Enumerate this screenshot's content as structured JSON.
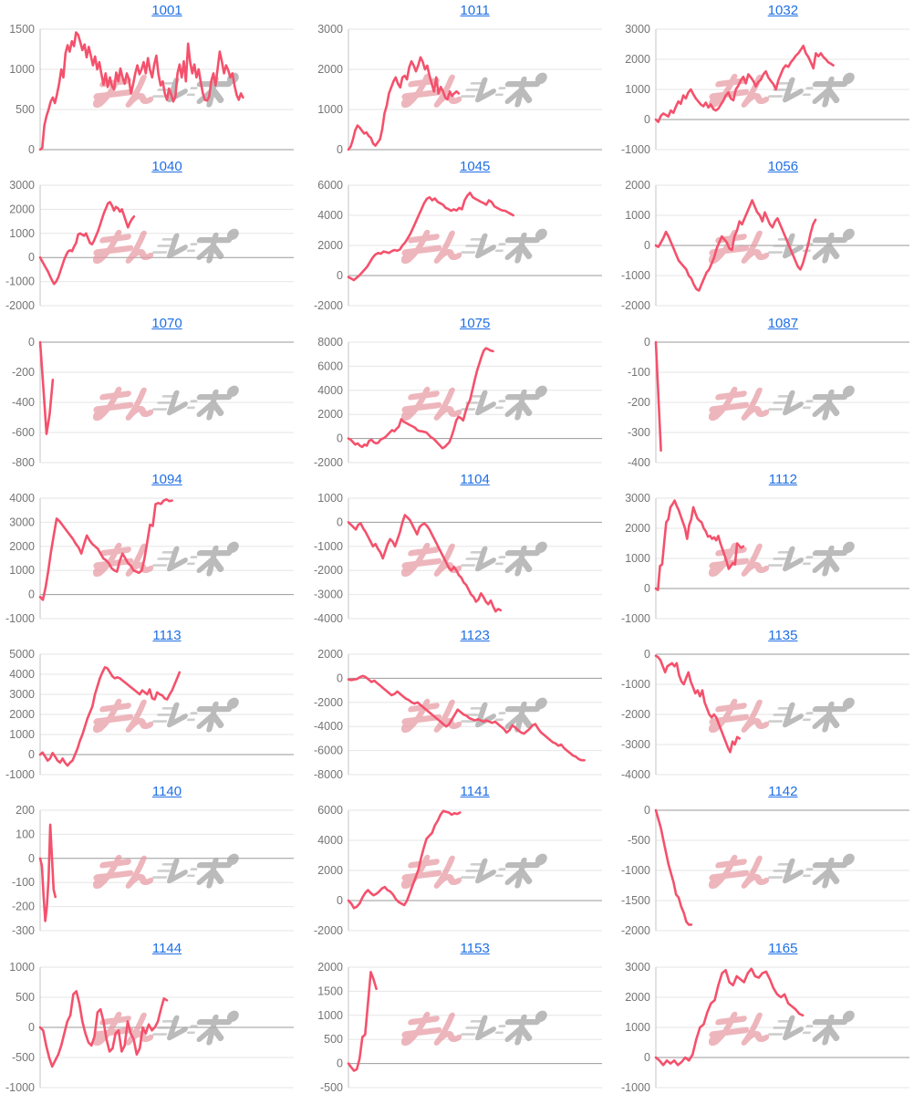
{
  "page": {
    "background": "#ffffff"
  },
  "theme": {
    "link_color": "#1f6fe5",
    "series_color": "#f4516c",
    "tick_label_color": "#757575",
    "gridline_color": "#e6e6e6",
    "baseline_color": "#9a9a9a",
    "axis_line_color": "#c4c4c4",
    "watermark_pink": "#e79aa3",
    "watermark_gray": "#a9a9a9"
  },
  "watermark": {
    "icon": "minrepo-logo",
    "pink_part": "みん",
    "gray_part": "レポ"
  },
  "chart_data": [
    {
      "type": "line",
      "title": "1001",
      "ylim": [
        0,
        1500
      ],
      "yticks": [
        0,
        500,
        1000,
        1500
      ],
      "x_end_fraction": 0.8,
      "values": [
        0,
        20,
        300,
        420,
        500,
        600,
        650,
        580,
        690,
        820,
        1000,
        900,
        1200,
        1300,
        1220,
        1350,
        1290,
        1460,
        1430,
        1340,
        1240,
        1310,
        1150,
        1280,
        1170,
        1050,
        1160,
        1000,
        1090,
        940,
        810,
        950,
        780,
        900,
        790,
        750,
        960,
        850,
        1010,
        900,
        820,
        950,
        880,
        700,
        810,
        950,
        1050,
        940,
        1000,
        1090,
        950,
        1140,
        990,
        900,
        1060,
        1170,
        940,
        800,
        850,
        700,
        620,
        760,
        690,
        600,
        660,
        950,
        1060,
        900,
        1100,
        850,
        1320,
        1090,
        950,
        1060,
        900,
        1000,
        840,
        700,
        620,
        610,
        660,
        860,
        950,
        800,
        1010,
        1220,
        1100,
        950,
        1050,
        990,
        900,
        950,
        800,
        680,
        620,
        700,
        650
      ]
    },
    {
      "type": "line",
      "title": "1011",
      "ylim": [
        0,
        3000
      ],
      "yticks": [
        0,
        1000,
        2000,
        3000
      ],
      "x_end_fraction": 0.435,
      "values": [
        0,
        80,
        250,
        480,
        600,
        550,
        470,
        400,
        430,
        340,
        290,
        150,
        100,
        180,
        260,
        500,
        900,
        1100,
        1400,
        1550,
        1700,
        1800,
        1640,
        1550,
        1800,
        1840,
        1750,
        2050,
        2200,
        2090,
        1950,
        2100,
        2300,
        2190,
        2000,
        2090,
        1850,
        1640,
        1450,
        1800,
        1400,
        1560,
        1450,
        1300,
        1250,
        1450,
        1340,
        1400,
        1450,
        1400
      ]
    },
    {
      "type": "line",
      "title": "1032",
      "ylim": [
        -1000,
        3000
      ],
      "yticks": [
        -1000,
        0,
        1000,
        2000,
        3000
      ],
      "x_end_fraction": 0.7,
      "values": [
        0,
        -80,
        120,
        200,
        150,
        100,
        300,
        220,
        420,
        600,
        520,
        800,
        700,
        900,
        1000,
        840,
        700,
        600,
        500,
        440,
        560,
        400,
        500,
        350,
        300,
        360,
        500,
        620,
        800,
        900,
        700,
        640,
        1000,
        1120,
        1300,
        1420,
        1200,
        1500,
        1400,
        1280,
        1100,
        1250,
        1320,
        1500,
        1600,
        1400,
        1280,
        1180,
        1000,
        1300,
        1500,
        1700,
        1800,
        1750,
        1900,
        2000,
        2120,
        2200,
        2320,
        2450,
        2200,
        2080,
        1900,
        1700,
        2200,
        2100,
        2200,
        2080,
        2000,
        1900,
        1850,
        1800
      ]
    },
    {
      "type": "line",
      "title": "1040",
      "ylim": [
        -2000,
        3000
      ],
      "yticks": [
        -2000,
        -1000,
        0,
        1000,
        2000,
        3000
      ],
      "x_end_fraction": 0.37,
      "values": [
        0,
        -150,
        -300,
        -450,
        -600,
        -780,
        -950,
        -1100,
        -1000,
        -840,
        -600,
        -350,
        -100,
        100,
        250,
        300,
        260,
        450,
        600,
        950,
        1000,
        950,
        900,
        1000,
        800,
        600,
        550,
        700,
        900,
        1100,
        1350,
        1600,
        1850,
        2050,
        2250,
        2300,
        2150,
        1950,
        2100,
        2040,
        1900,
        2000,
        1750,
        1500,
        1250,
        1450,
        1600,
        1700
      ]
    },
    {
      "type": "line",
      "title": "1045",
      "ylim": [
        -2000,
        6000
      ],
      "yticks": [
        -2000,
        0,
        2000,
        4000,
        6000
      ],
      "x_end_fraction": 0.65,
      "values": [
        -100,
        -200,
        -300,
        -150,
        0,
        200,
        400,
        600,
        900,
        1200,
        1400,
        1500,
        1450,
        1600,
        1550,
        1500,
        1620,
        1700,
        1650,
        1720,
        2000,
        2200,
        2500,
        2800,
        3200,
        3600,
        4000,
        4400,
        4800,
        5100,
        5200,
        5000,
        5120,
        4900,
        4800,
        4700,
        4500,
        4420,
        4300,
        4400,
        4320,
        4500,
        4400,
        5000,
        5300,
        5500,
        5200,
        5100,
        5000,
        4900,
        4820,
        4700,
        5000,
        4880,
        4600,
        4500,
        4400,
        4320,
        4300,
        4200,
        4100,
        4000
      ]
    },
    {
      "type": "line",
      "title": "1056",
      "ylim": [
        -2000,
        2000
      ],
      "yticks": [
        -2000,
        -1000,
        0,
        1000,
        2000
      ],
      "x_end_fraction": 0.63,
      "values": [
        0,
        -50,
        100,
        250,
        450,
        300,
        100,
        -100,
        -300,
        -500,
        -600,
        -700,
        -800,
        -1000,
        -1100,
        -1300,
        -1450,
        -1500,
        -1300,
        -1100,
        -900,
        -800,
        -600,
        -400,
        -100,
        100,
        300,
        200,
        100,
        -100,
        -150,
        300,
        500,
        800,
        700,
        900,
        1100,
        1300,
        1500,
        1300,
        1100,
        1000,
        800,
        1100,
        900,
        700,
        600,
        800,
        900,
        700,
        500,
        300,
        100,
        -100,
        -300,
        -500,
        -700,
        -800,
        -600,
        -300,
        0,
        400,
        700,
        850
      ]
    },
    {
      "type": "line",
      "title": "1070",
      "ylim": [
        -800,
        0
      ],
      "yticks": [
        -800,
        -600,
        -400,
        -200,
        0
      ],
      "x_end_fraction": 0.05,
      "values": [
        0,
        -300,
        -610,
        -480,
        -250
      ]
    },
    {
      "type": "line",
      "title": "1075",
      "ylim": [
        -2000,
        8000
      ],
      "yticks": [
        -2000,
        0,
        2000,
        4000,
        6000,
        8000
      ],
      "x_end_fraction": 0.57,
      "values": [
        0,
        -100,
        -300,
        -500,
        -400,
        -600,
        -700,
        -500,
        -600,
        -200,
        -100,
        -300,
        -400,
        -350,
        -100,
        0,
        100,
        300,
        500,
        700,
        600,
        800,
        1000,
        1600,
        1400,
        1300,
        1200,
        1100,
        1000,
        900,
        700,
        620,
        600,
        550,
        500,
        300,
        100,
        0,
        -200,
        -400,
        -600,
        -800,
        -700,
        -500,
        -300,
        200,
        800,
        1500,
        1800,
        1700,
        1500,
        2200,
        2800,
        3200,
        4000,
        4800,
        5600,
        6200,
        6800,
        7300,
        7500,
        7400,
        7300,
        7250
      ]
    },
    {
      "type": "line",
      "title": "1087",
      "ylim": [
        -400,
        0
      ],
      "yticks": [
        -400,
        -300,
        -200,
        -100,
        0
      ],
      "x_end_fraction": 0.02,
      "values": [
        0,
        -360
      ]
    },
    {
      "type": "line",
      "title": "1094",
      "ylim": [
        -1000,
        4000
      ],
      "yticks": [
        -1000,
        0,
        1000,
        2000,
        3000,
        4000
      ],
      "x_end_fraction": 0.52,
      "values": [
        -100,
        -220,
        300,
        1000,
        1800,
        2500,
        3150,
        3050,
        2900,
        2750,
        2600,
        2450,
        2300,
        2100,
        1950,
        1700,
        2100,
        2450,
        2250,
        2100,
        2000,
        1900,
        1700,
        1500,
        1420,
        1300,
        1100,
        1000,
        950,
        1400,
        1700,
        1500,
        1300,
        1200,
        1000,
        950,
        900,
        1000,
        1500,
        2200,
        2900,
        2850,
        3750,
        3800,
        3760,
        3900,
        3950,
        3880,
        3900
      ]
    },
    {
      "type": "line",
      "title": "1104",
      "ylim": [
        -4000,
        1000
      ],
      "yticks": [
        -4000,
        -3000,
        -2000,
        -1000,
        0,
        1000
      ],
      "x_end_fraction": 0.6,
      "values": [
        0,
        -100,
        -200,
        -300,
        -100,
        -50,
        -250,
        -400,
        -600,
        -800,
        -1000,
        -900,
        -1100,
        -1250,
        -1500,
        -1200,
        -900,
        -700,
        -800,
        -1000,
        -700,
        -400,
        0,
        300,
        200,
        100,
        -100,
        -300,
        -500,
        -200,
        -100,
        -50,
        -150,
        -300,
        -500,
        -700,
        -900,
        -1100,
        -1300,
        -1500,
        -1700,
        -1900,
        -2000,
        -1850,
        -2000,
        -2200,
        -2300,
        -2500,
        -2600,
        -2800,
        -3000,
        -3100,
        -3300,
        -3200,
        -2950,
        -3100,
        -3300,
        -3400,
        -3250,
        -3500,
        -3700,
        -3600,
        -3650
      ]
    },
    {
      "type": "line",
      "title": "1112",
      "ylim": [
        -1000,
        3000
      ],
      "yticks": [
        -1000,
        0,
        1000,
        2000,
        3000
      ],
      "x_end_fraction": 0.345,
      "values": [
        0,
        -50,
        750,
        800,
        1500,
        2200,
        2300,
        2700,
        2800,
        2920,
        2750,
        2600,
        2400,
        2200,
        2000,
        1650,
        2100,
        2300,
        2700,
        2500,
        2320,
        2250,
        2200,
        2000,
        1900,
        1720,
        1750,
        1650,
        1700,
        1600,
        1750,
        1500,
        1300,
        1100,
        900,
        650,
        750,
        850,
        800,
        1500,
        1420,
        1350,
        1400
      ]
    },
    {
      "type": "line",
      "title": "1113",
      "ylim": [
        -1000,
        5000
      ],
      "yticks": [
        -1000,
        0,
        1000,
        2000,
        3000,
        4000,
        5000
      ],
      "x_end_fraction": 0.55,
      "values": [
        0,
        100,
        -100,
        -300,
        -200,
        80,
        -100,
        -300,
        -400,
        -200,
        -400,
        -550,
        -400,
        -300,
        0,
        300,
        700,
        1000,
        1400,
        1800,
        2100,
        2400,
        3000,
        3400,
        3800,
        4100,
        4350,
        4300,
        4100,
        3900,
        3800,
        3850,
        3800,
        3700,
        3600,
        3500,
        3400,
        3300,
        3200,
        3100,
        3000,
        3200,
        3100,
        3000,
        3250,
        2800,
        2750,
        3100,
        3000,
        2950,
        2800,
        2750,
        3000,
        3200,
        3500,
        3800,
        4100
      ]
    },
    {
      "type": "line",
      "title": "1123",
      "ylim": [
        -8000,
        2000
      ],
      "yticks": [
        -8000,
        -6000,
        -4000,
        -2000,
        0,
        2000
      ],
      "x_end_fraction": 0.93,
      "values": [
        -100,
        -150,
        -100,
        -50,
        100,
        200,
        100,
        -100,
        -300,
        -200,
        -400,
        -600,
        -800,
        -1000,
        -1200,
        -1400,
        -1300,
        -1100,
        -1300,
        -1500,
        -1700,
        -1800,
        -2000,
        -2100,
        -2000,
        -2200,
        -2400,
        -2600,
        -2800,
        -3000,
        -3200,
        -3400,
        -3600,
        -3800,
        -4000,
        -3800,
        -3400,
        -3000,
        -2600,
        -2800,
        -3000,
        -3100,
        -3300,
        -3400,
        -3500,
        -3400,
        -3500,
        -3600,
        -3500,
        -3600,
        -3700,
        -3600,
        -3800,
        -4000,
        -4200,
        -4500,
        -4300,
        -3900,
        -4100,
        -4300,
        -4500,
        -4600,
        -4400,
        -4200,
        -3900,
        -3800,
        -4200,
        -4500,
        -4700,
        -4900,
        -5100,
        -5300,
        -5400,
        -5600,
        -5500,
        -5800,
        -6000,
        -6200,
        -6400,
        -6500,
        -6700,
        -6800,
        -6800
      ]
    },
    {
      "type": "line",
      "title": "1135",
      "ylim": [
        -4000,
        0
      ],
      "yticks": [
        -4000,
        -3000,
        -2000,
        -1000,
        0
      ],
      "x_end_fraction": 0.33,
      "values": [
        -50,
        -100,
        -200,
        -400,
        -600,
        -400,
        -350,
        -300,
        -400,
        -300,
        -700,
        -900,
        -1000,
        -800,
        -600,
        -900,
        -1100,
        -1300,
        -1200,
        -1400,
        -1200,
        -1600,
        -1800,
        -2000,
        -2100,
        -2000,
        -2100,
        -2300,
        -2500,
        -2700,
        -2900,
        -3100,
        -3250,
        -2900,
        -3000,
        -2750,
        -2800
      ]
    },
    {
      "type": "line",
      "title": "1140",
      "ylim": [
        -300,
        200
      ],
      "yticks": [
        -300,
        -200,
        -100,
        0,
        100,
        200
      ],
      "x_end_fraction": 0.06,
      "values": [
        0,
        -30,
        -150,
        -260,
        -200,
        -80,
        140,
        0,
        -130,
        -160
      ]
    },
    {
      "type": "line",
      "title": "1141",
      "ylim": [
        -2000,
        6000
      ],
      "yticks": [
        -2000,
        0,
        2000,
        4000,
        6000
      ],
      "x_end_fraction": 0.44,
      "values": [
        0,
        -200,
        -500,
        -400,
        -200,
        200,
        500,
        700,
        500,
        350,
        450,
        600,
        800,
        900,
        700,
        600,
        400,
        100,
        -100,
        -200,
        -300,
        0,
        500,
        1000,
        1500,
        2000,
        2800,
        3500,
        4100,
        4300,
        4500,
        5000,
        5300,
        5700,
        5950,
        5900,
        5850,
        5700,
        5800,
        5750,
        5850
      ]
    },
    {
      "type": "line",
      "title": "1142",
      "ylim": [
        -2000,
        0
      ],
      "yticks": [
        -2000,
        -1500,
        -1000,
        -500,
        0
      ],
      "x_end_fraction": 0.14,
      "values": [
        0,
        -150,
        -300,
        -500,
        -700,
        -900,
        -1050,
        -1200,
        -1400,
        -1450,
        -1600,
        -1700,
        -1850,
        -1900,
        -1900
      ]
    },
    {
      "type": "line",
      "title": "1144",
      "ylim": [
        -1000,
        1000
      ],
      "yticks": [
        -1000,
        -500,
        0,
        500,
        1000
      ],
      "x_end_fraction": 0.5,
      "values": [
        0,
        -50,
        -300,
        -500,
        -650,
        -550,
        -450,
        -300,
        -100,
        100,
        200,
        550,
        600,
        400,
        100,
        -100,
        -250,
        -300,
        -150,
        250,
        300,
        100,
        -200,
        -400,
        -350,
        -100,
        -50,
        -400,
        -300,
        100,
        -100,
        -200,
        -450,
        -350,
        0,
        -100,
        50,
        -50,
        0,
        100,
        300,
        480,
        450
      ]
    },
    {
      "type": "line",
      "title": "1153",
      "ylim": [
        -500,
        2000
      ],
      "yticks": [
        -500,
        0,
        500,
        1000,
        1500,
        2000
      ],
      "x_end_fraction": 0.11,
      "values": [
        0,
        -80,
        -150,
        -120,
        100,
        550,
        600,
        1250,
        1900,
        1750,
        1550
      ]
    },
    {
      "type": "line",
      "title": "1165",
      "ylim": [
        -1000,
        3000
      ],
      "yticks": [
        -1000,
        0,
        1000,
        2000,
        3000
      ],
      "x_end_fraction": 0.58,
      "values": [
        0,
        -100,
        -250,
        -100,
        -200,
        -100,
        -250,
        -150,
        0,
        -100,
        100,
        600,
        1000,
        1100,
        1500,
        1800,
        1900,
        2400,
        2800,
        2900,
        2500,
        2400,
        2700,
        2600,
        2500,
        2800,
        2950,
        2700,
        2650,
        2800,
        2850,
        2600,
        2300,
        2100,
        2000,
        2100,
        1800,
        1700,
        1600,
        1450,
        1400
      ]
    }
  ]
}
